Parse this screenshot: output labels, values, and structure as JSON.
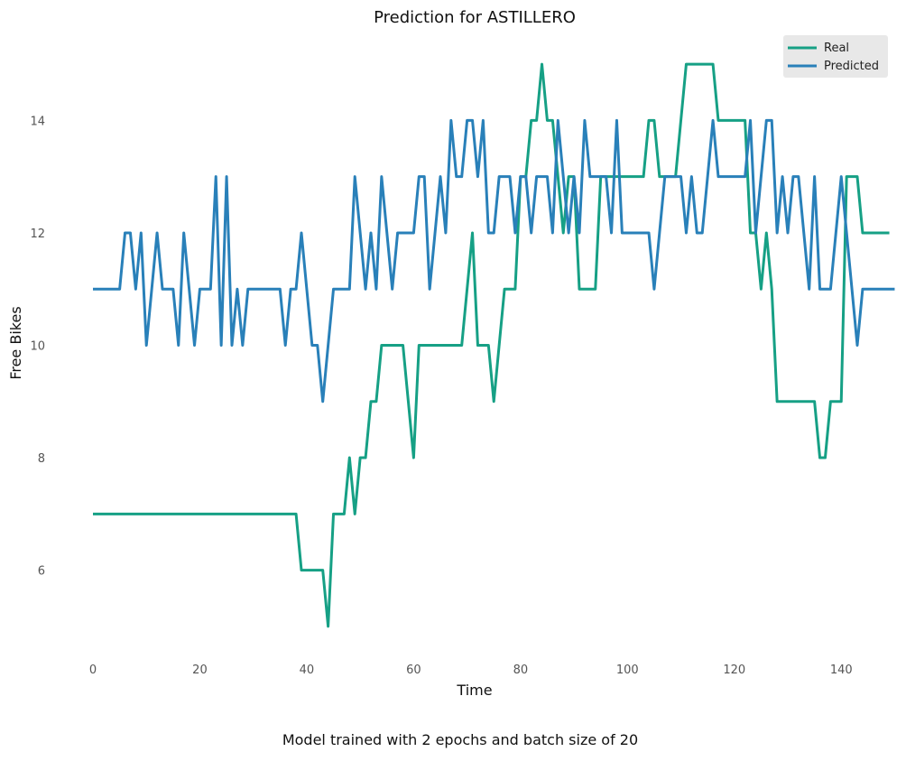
{
  "chart_data": {
    "type": "line",
    "title": "Prediction for ASTILLERO",
    "xlabel": "Time",
    "ylabel": "Free Bikes",
    "caption": "Model trained with 2 epochs and batch size of 20",
    "xlim": [
      0,
      143
    ],
    "ylim": [
      4.5,
      15.5
    ],
    "xticks": [
      0,
      20,
      40,
      60,
      80,
      100,
      120,
      140
    ],
    "yticks": [
      6,
      8,
      10,
      12,
      14
    ],
    "grid": false,
    "legend_position": "top-right",
    "series": [
      {
        "name": "Real",
        "color": "#16a085",
        "values": [
          7,
          7,
          7,
          7,
          7,
          7,
          7,
          7,
          7,
          7,
          7,
          7,
          7,
          7,
          7,
          7,
          7,
          7,
          7,
          7,
          7,
          7,
          7,
          7,
          7,
          7,
          7,
          7,
          7,
          7,
          7,
          7,
          7,
          7,
          7,
          7,
          7,
          7,
          7,
          6,
          6,
          6,
          6,
          6,
          5,
          7,
          7,
          7,
          8,
          7,
          8,
          8,
          9,
          9,
          10,
          10,
          10,
          10,
          10,
          9,
          8,
          10,
          10,
          10,
          10,
          10,
          10,
          10,
          10,
          10,
          11,
          12,
          10,
          10,
          10,
          9,
          10,
          11,
          11,
          11,
          13,
          13,
          14,
          14,
          15,
          14,
          14,
          13,
          12,
          13,
          13,
          11,
          11,
          11,
          11,
          13,
          13,
          13,
          13,
          13,
          13,
          13,
          13,
          13,
          14,
          14,
          13,
          13,
          13,
          13,
          14,
          15,
          15,
          15,
          15,
          15,
          15,
          14,
          14,
          14,
          14,
          14,
          14,
          12,
          12,
          11,
          12,
          11,
          9,
          9,
          9,
          9,
          9,
          9,
          9,
          9,
          8,
          8,
          9,
          9,
          9,
          13,
          13,
          13,
          12,
          12,
          12,
          12,
          12,
          12
        ]
      },
      {
        "name": "Predicted",
        "color": "#2980b9",
        "values": [
          11,
          11,
          11,
          11,
          11,
          11,
          12,
          12,
          11,
          12,
          10,
          11,
          12,
          11,
          11,
          11,
          10,
          12,
          11,
          10,
          11,
          11,
          11,
          13,
          10,
          13,
          10,
          11,
          10,
          11,
          11,
          11,
          11,
          11,
          11,
          11,
          10,
          11,
          11,
          12,
          11,
          10,
          10,
          9,
          10,
          11,
          11,
          11,
          11,
          13,
          12,
          11,
          12,
          11,
          13,
          12,
          11,
          12,
          12,
          12,
          12,
          13,
          13,
          11,
          12,
          13,
          12,
          14,
          13,
          13,
          14,
          14,
          13,
          14,
          12,
          12,
          13,
          13,
          13,
          12,
          13,
          13,
          12,
          13,
          13,
          13,
          12,
          14,
          13,
          12,
          13,
          12,
          14,
          13,
          13,
          13,
          13,
          12,
          14,
          12,
          12,
          12,
          12,
          12,
          12,
          11,
          12,
          13,
          13,
          13,
          13,
          12,
          13,
          12,
          12,
          13,
          14,
          13,
          13,
          13,
          13,
          13,
          13,
          14,
          12,
          13,
          14,
          14,
          12,
          13,
          12,
          13,
          13,
          12,
          11,
          13,
          11,
          11,
          11,
          12,
          13,
          12,
          11,
          10,
          11,
          11,
          11,
          11,
          11,
          11,
          11
        ]
      }
    ]
  }
}
